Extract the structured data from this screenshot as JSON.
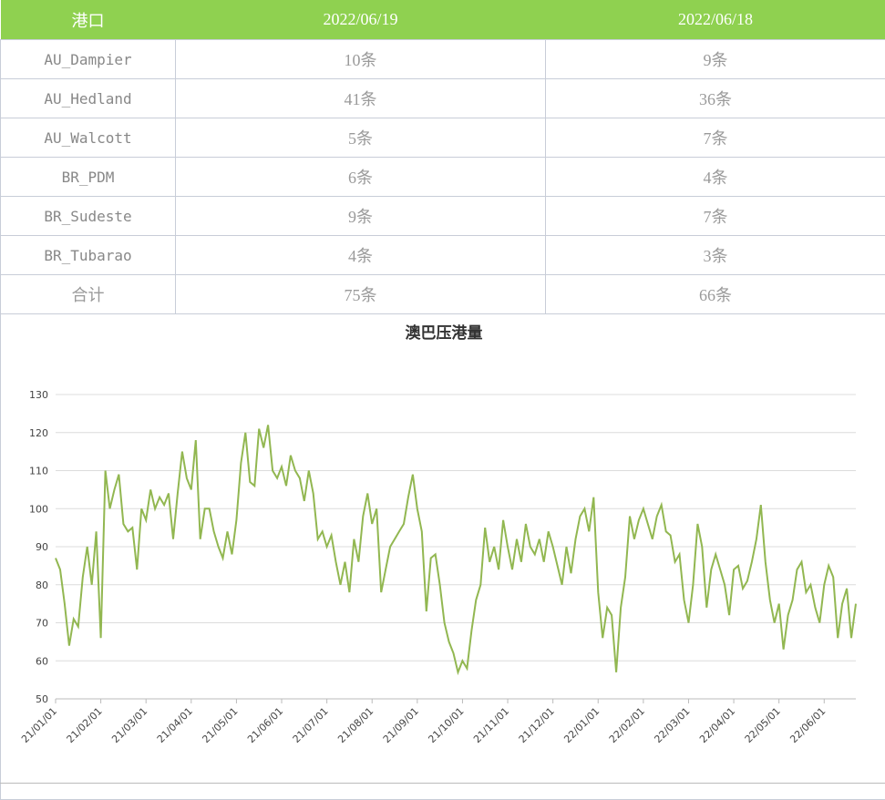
{
  "table": {
    "header": [
      "港口",
      "2022/06/19",
      "2022/06/18"
    ],
    "rows": [
      [
        "AU_Dampier",
        "10条",
        "9条"
      ],
      [
        "AU_Hedland",
        "41条",
        "36条"
      ],
      [
        "AU_Walcott",
        "5条",
        "7条"
      ],
      [
        "BR_PDM",
        "6条",
        "4条"
      ],
      [
        "BR_Sudeste",
        "9条",
        "7条"
      ],
      [
        "BR_Tubarao",
        "4条",
        "3条"
      ],
      [
        "合计",
        "75条",
        "66条"
      ]
    ]
  },
  "chart_data": {
    "type": "line",
    "title": "澳巴压港量",
    "categories": [
      "21/01/01",
      null,
      null,
      null,
      null,
      null,
      null,
      null,
      null,
      null,
      "21/02/01",
      null,
      null,
      null,
      null,
      null,
      null,
      null,
      null,
      null,
      "21/03/01",
      null,
      null,
      null,
      null,
      null,
      null,
      null,
      null,
      null,
      "21/04/01",
      null,
      null,
      null,
      null,
      null,
      null,
      null,
      null,
      null,
      "21/05/01",
      null,
      null,
      null,
      null,
      null,
      null,
      null,
      null,
      null,
      "21/06/01",
      null,
      null,
      null,
      null,
      null,
      null,
      null,
      null,
      null,
      "21/07/01",
      null,
      null,
      null,
      null,
      null,
      null,
      null,
      null,
      null,
      "21/08/01",
      null,
      null,
      null,
      null,
      null,
      null,
      null,
      null,
      null,
      "21/09/01",
      null,
      null,
      null,
      null,
      null,
      null,
      null,
      null,
      null,
      "21/10/01",
      null,
      null,
      null,
      null,
      null,
      null,
      null,
      null,
      null,
      "21/11/01",
      null,
      null,
      null,
      null,
      null,
      null,
      null,
      null,
      null,
      "21/12/01",
      null,
      null,
      null,
      null,
      null,
      null,
      null,
      null,
      null,
      "22/01/01",
      null,
      null,
      null,
      null,
      null,
      null,
      null,
      null,
      null,
      "22/02/01",
      null,
      null,
      null,
      null,
      null,
      null,
      null,
      null,
      null,
      "22/03/01",
      null,
      null,
      null,
      null,
      null,
      null,
      null,
      null,
      null,
      "22/04/01",
      null,
      null,
      null,
      null,
      null,
      null,
      null,
      null,
      null,
      "22/05/01",
      null,
      null,
      null,
      null,
      null,
      null,
      null,
      null,
      null,
      "22/06/01",
      null,
      null,
      null,
      null,
      null,
      null,
      null
    ],
    "series": [
      {
        "color": "#92b751",
        "values": [
          87,
          84,
          75,
          64,
          71,
          69,
          82,
          90,
          80,
          94,
          66,
          110,
          100,
          105,
          109,
          96,
          94,
          95,
          84,
          100,
          97,
          105,
          100,
          103,
          101,
          104,
          92,
          104,
          115,
          108,
          105,
          118,
          92,
          100,
          100,
          94,
          90,
          87,
          94,
          88,
          97,
          112,
          120,
          107,
          106,
          121,
          116,
          122,
          110,
          108,
          111,
          106,
          114,
          110,
          108,
          102,
          110,
          104,
          92,
          94,
          90,
          93,
          86,
          80,
          86,
          78,
          92,
          86,
          98,
          104,
          96,
          100,
          78,
          84,
          90,
          92,
          94,
          96,
          103,
          109,
          100,
          94,
          73,
          87,
          88,
          80,
          70,
          65,
          62,
          57,
          60,
          58,
          68,
          76,
          80,
          95,
          86,
          90,
          84,
          97,
          90,
          84,
          92,
          86,
          96,
          90,
          88,
          92,
          86,
          94,
          90,
          85,
          80,
          90,
          83,
          92,
          98,
          100,
          94,
          103,
          78,
          66,
          74,
          72,
          57,
          74,
          82,
          98,
          92,
          97,
          100,
          96,
          92,
          98,
          101,
          94,
          93,
          86,
          88,
          76,
          70,
          80,
          96,
          90,
          74,
          84,
          88,
          84,
          80,
          72,
          84,
          85,
          79,
          81,
          86,
          92,
          101,
          86,
          76,
          70,
          75,
          63,
          72,
          76,
          84,
          86,
          78,
          80,
          74,
          70,
          80,
          85,
          82,
          66,
          75,
          79,
          66,
          75
        ]
      }
    ],
    "ylim": [
      50,
      130
    ],
    "yticks": [
      50,
      60,
      70,
      80,
      90,
      100,
      110,
      120,
      130
    ],
    "grid": true
  }
}
